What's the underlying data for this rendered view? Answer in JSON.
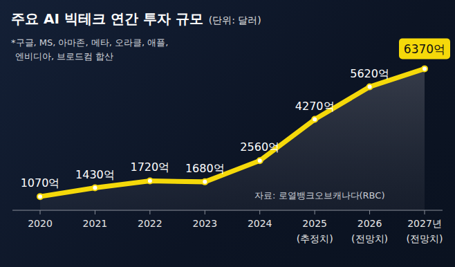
{
  "chart_data": {
    "type": "line",
    "title": "주요 AI 빅테크 연간 투자 규모",
    "subtitle": "(단위: 달러)",
    "note": [
      "*구글, MS, 아마존, 메타, 오라클, 애플,",
      "엔비디아, 브로드컴 합산"
    ],
    "source": "자료: 로열뱅크오브캐나다(RBC)",
    "categories": [
      "2020",
      "2021",
      "2022",
      "2023",
      "2024",
      "2025\n(추정치)",
      "2026\n(전망치)",
      "2027년\n(전망치)"
    ],
    "values": [
      1070,
      1430,
      1720,
      1680,
      2560,
      4270,
      5620,
      6370
    ],
    "value_labels": [
      "1070억",
      "1430억",
      "1720억",
      "1680억",
      "2560억",
      "4270억",
      "5620억",
      "6370억"
    ],
    "color": "#f5d90a",
    "ylim": [
      500,
      7500
    ],
    "data_labels": true,
    "tick_labels": "x",
    "grid": false
  }
}
